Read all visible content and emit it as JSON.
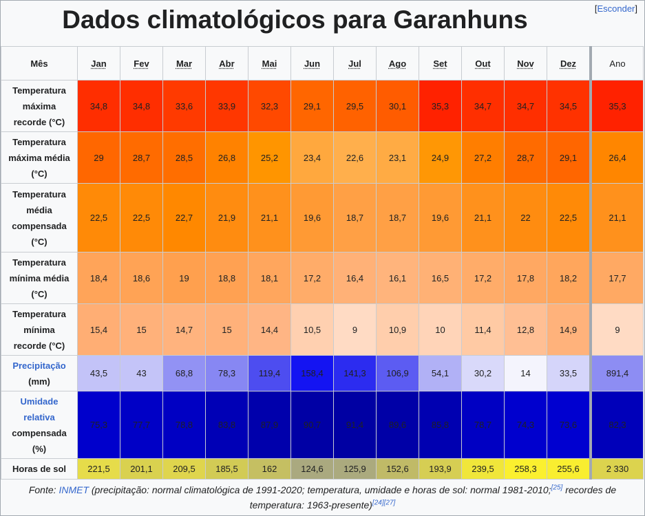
{
  "title": "Dados climatológicos para Garanhuns",
  "hide_link": "Esconder",
  "corner_label": "Mês",
  "months": [
    "Jan",
    "Fev",
    "Mar",
    "Abr",
    "Mai",
    "Jun",
    "Jul",
    "Ago",
    "Set",
    "Out",
    "Nov",
    "Dez"
  ],
  "year_label": "Ano",
  "rows": [
    {
      "label_lines": [
        "Temperatura",
        "máxima",
        "recorde (°C)"
      ],
      "height": 75,
      "values": [
        "34,8",
        "34,8",
        "33,6",
        "33,9",
        "32,3",
        "29,1",
        "29,5",
        "30,1",
        "35,3",
        "34,7",
        "34,7",
        "34,5"
      ],
      "year": "35,3",
      "colors": [
        "#ff2e00",
        "#ff2e00",
        "#ff3a00",
        "#ff3700",
        "#ff4900",
        "#ff6600",
        "#ff6200",
        "#ff5c00",
        "#ff2200",
        "#ff2f00",
        "#ff2f00",
        "#ff3200"
      ],
      "year_color": "#ff2200"
    },
    {
      "label_lines": [
        "Temperatura",
        "máxima média",
        "(°C)"
      ],
      "height": 75,
      "values": [
        "29",
        "28,7",
        "28,5",
        "26,8",
        "25,2",
        "23,4",
        "22,6",
        "23,1",
        "24,9",
        "27,2",
        "28,7",
        "29,1"
      ],
      "year": "26,4",
      "colors": [
        "#ff6700",
        "#ff6b00",
        "#ff6e00",
        "#ff8200",
        "#ff9500",
        "#ffa83e",
        "#ffaf4c",
        "#ffab44",
        "#ff9705",
        "#ff7e00",
        "#ff6b00",
        "#ff6600"
      ],
      "year_color": "#ff8600"
    },
    {
      "label_lines": [
        "Temperatura",
        "média",
        "compensada",
        "(°C)"
      ],
      "height": 100,
      "values": [
        "22,5",
        "22,5",
        "22,7",
        "21,9",
        "21,1",
        "19,6",
        "18,7",
        "18,7",
        "19,6",
        "21,1",
        "22",
        "22,5"
      ],
      "year": "21,1",
      "colors": [
        "#ff8a07",
        "#ff8a07",
        "#ff8800",
        "#ff8c10",
        "#ff911c",
        "#ff9a34",
        "#ffa045",
        "#ffa045",
        "#ff9a34",
        "#ff911c",
        "#ff8c10",
        "#ff8a07"
      ],
      "year_color": "#ff911c"
    },
    {
      "label_lines": [
        "Temperatura",
        "mínima média",
        "(°C)"
      ],
      "height": 75,
      "values": [
        "18,4",
        "18,6",
        "19",
        "18,8",
        "18,1",
        "17,2",
        "16,4",
        "16,1",
        "16,5",
        "17,2",
        "17,8",
        "18,2"
      ],
      "year": "17,7",
      "colors": [
        "#ffa459",
        "#ffa355",
        "#ffa04e",
        "#ffa152",
        "#ffa65d",
        "#ffac69",
        "#ffb177",
        "#ffb47c",
        "#ffb175",
        "#ffac69",
        "#ffa862",
        "#ffa65c"
      ],
      "year_color": "#ffa963"
    },
    {
      "label_lines": [
        "Temperatura",
        "mínima",
        "recorde (°C)"
      ],
      "height": 75,
      "values": [
        "15,4",
        "15",
        "14,7",
        "15",
        "14,4",
        "10,5",
        "9",
        "10,9",
        "10",
        "11,4",
        "12,8",
        "14,9"
      ],
      "year": "9",
      "colors": [
        "#ffae74",
        "#ffb17a",
        "#ffb37e",
        "#ffb17a",
        "#ffb584",
        "#ffd0b0",
        "#ffdbc4",
        "#ffceac",
        "#ffd4b8",
        "#ffcaa4",
        "#ffbf94",
        "#ffb27b"
      ],
      "year_color": "#ffdbc4"
    },
    {
      "label_lines": [
        "Precipitação",
        "(mm)"
      ],
      "height": 52,
      "label_link": true,
      "values": [
        "43,5",
        "43",
        "68,8",
        "78,3",
        "119,4",
        "158,4",
        "141,3",
        "106,9",
        "54,1",
        "30,2",
        "14",
        "33,5"
      ],
      "year": "891,4",
      "colors": [
        "#c3c3f8",
        "#c4c4f8",
        "#9292f4",
        "#8787f3",
        "#4d4df0",
        "#1414f2",
        "#2c2cf0",
        "#5c5cf2",
        "#b1b1f6",
        "#d9d9fa",
        "#f4f4fd",
        "#d5d5fa"
      ],
      "year_color": "#8d8df3",
      "dark": [
        false,
        false,
        false,
        false,
        true,
        true,
        true,
        true,
        false,
        false,
        false,
        false
      ]
    },
    {
      "label_lines": [
        "Umidade",
        "relativa",
        "compensada",
        "(%)"
      ],
      "height": 98,
      "label_link_lines": 2,
      "values": [
        "75,3",
        "77,7",
        "78,8",
        "83,8",
        "87,9",
        "90,7",
        "91,4",
        "89,6",
        "85,8",
        "78,7",
        "74,3",
        "73,6"
      ],
      "year": "82,3",
      "colors": [
        "#0000cc",
        "#0000c6",
        "#0000c3",
        "#0000b6",
        "#0000ac",
        "#0000a5",
        "#0000a3",
        "#0000a7",
        "#0000b1",
        "#0000c3",
        "#0000ce",
        "#0000d0"
      ],
      "year_color": "#0000ba",
      "all_dark": true
    },
    {
      "label_lines": [
        "Horas de sol"
      ],
      "height": 30,
      "values": [
        "221,5",
        "201,1",
        "209,5",
        "185,5",
        "162",
        "124,6",
        "125,9",
        "152,6",
        "193,9",
        "239,5",
        "258,3",
        "255,6"
      ],
      "year": "2 330",
      "colors": [
        "#e6dc4a",
        "#d9d14f",
        "#dfd54d",
        "#d2cb55",
        "#c5bf62",
        "#aaa97f",
        "#abaa7e",
        "#c0ba67",
        "#d6ce53",
        "#f0e63a",
        "#fbf02f",
        "#f9ee30"
      ],
      "year_color": "#dcd34e"
    }
  ],
  "source": {
    "label": "Fonte",
    "link": "INMET",
    "text1": " (precipitação: normal climatológica de 1991-2020; temperatura, umidade e horas de sol: normal 1981-2010;",
    "ref1": "[25]",
    "text2": " recordes de temperatura: 1963-presente)",
    "ref2": "[24]",
    "ref3": "[27]"
  }
}
